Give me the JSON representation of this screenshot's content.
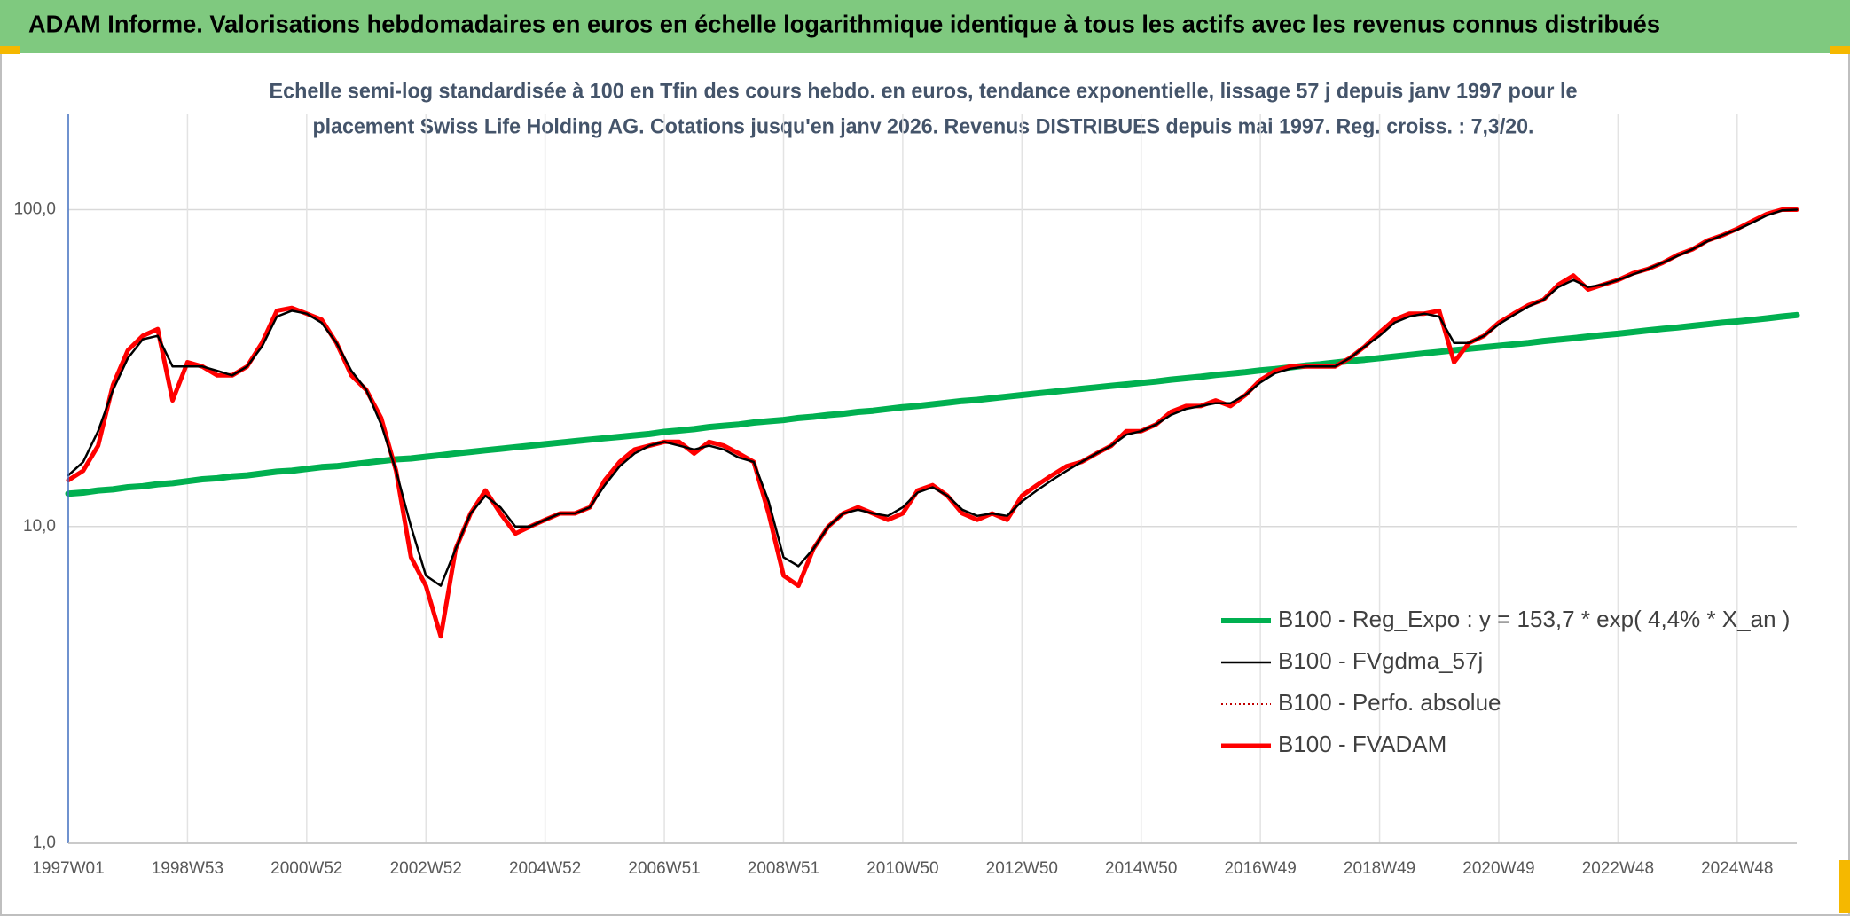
{
  "chart_data": {
    "type": "line",
    "title": "ADAM Informe. Valorisations hebdomadaires en euros en échelle logarithmique identique à tous les actifs avec les revenus connus distribués",
    "subtitle": [
      "Echelle semi-log standardisée à 100 en Tfin des cours hebdo. en euros, tendance exponentielle, lissage 57 j depuis janv 1997 pour le",
      "placement Swiss Life Holding AG. Cotations jusqu'en janv 2026. Revenus DISTRIBUES depuis mai 1997. Reg. croiss. : 7,3/20."
    ],
    "log_scale": true,
    "grid": true,
    "legend": "lower right",
    "ylim": [
      1,
      200
    ],
    "yticks": [
      {
        "value": 1,
        "label": "1,0"
      },
      {
        "value": 10,
        "label": "10,0"
      },
      {
        "value": 100,
        "label": "100,0"
      }
    ],
    "categories": [
      "1997W01",
      null,
      null,
      null,
      null,
      null,
      null,
      null,
      "1998W53",
      null,
      null,
      null,
      null,
      null,
      null,
      null,
      "2000W52",
      null,
      null,
      null,
      null,
      null,
      null,
      null,
      "2002W52",
      null,
      null,
      null,
      null,
      null,
      null,
      null,
      "2004W52",
      null,
      null,
      null,
      null,
      null,
      null,
      null,
      "2006W51",
      null,
      null,
      null,
      null,
      null,
      null,
      null,
      "2008W51",
      null,
      null,
      null,
      null,
      null,
      null,
      null,
      "2010W50",
      null,
      null,
      null,
      null,
      null,
      null,
      null,
      "2012W50",
      null,
      null,
      null,
      null,
      null,
      null,
      null,
      "2014W50",
      null,
      null,
      null,
      null,
      null,
      null,
      null,
      "2016W49",
      null,
      null,
      null,
      null,
      null,
      null,
      null,
      "2018W49",
      null,
      null,
      null,
      null,
      null,
      null,
      null,
      "2020W49",
      null,
      null,
      null,
      null,
      null,
      null,
      null,
      "2022W48",
      null,
      null,
      null,
      null,
      null,
      null,
      null,
      "2024W48",
      null,
      null,
      null,
      null
    ],
    "series": [
      {
        "name": "B100 - Reg_Expo : y = 153,7 * exp( 4,4% *  X_an )",
        "color": "#00b050",
        "style": "solid",
        "width": 7,
        "values": [
          12.7,
          12.8,
          13.0,
          13.1,
          13.3,
          13.4,
          13.6,
          13.7,
          13.9,
          14.1,
          14.2,
          14.4,
          14.5,
          14.7,
          14.9,
          15.0,
          15.2,
          15.4,
          15.5,
          15.7,
          15.9,
          16.1,
          16.3,
          16.4,
          16.6,
          16.8,
          17.0,
          17.2,
          17.4,
          17.6,
          17.8,
          18.0,
          18.2,
          18.4,
          18.6,
          18.8,
          19.0,
          19.2,
          19.4,
          19.6,
          19.9,
          20.1,
          20.3,
          20.6,
          20.8,
          21.0,
          21.3,
          21.5,
          21.7,
          22.0,
          22.2,
          22.5,
          22.7,
          23.0,
          23.2,
          23.5,
          23.8,
          24.0,
          24.3,
          24.6,
          24.9,
          25.1,
          25.4,
          25.7,
          26.0,
          26.3,
          26.6,
          26.9,
          27.2,
          27.5,
          27.8,
          28.1,
          28.4,
          28.7,
          29.1,
          29.4,
          29.7,
          30.1,
          30.4,
          30.7,
          31.1,
          31.4,
          31.8,
          32.2,
          32.5,
          32.9,
          33.3,
          33.6,
          34.0,
          34.4,
          34.8,
          35.2,
          35.6,
          36.0,
          36.4,
          36.8,
          37.2,
          37.6,
          38.0,
          38.5,
          38.9,
          39.3,
          39.8,
          40.2,
          40.6,
          41.1,
          41.6,
          42.1,
          42.5,
          43.0,
          43.5,
          44.0,
          44.4,
          44.9,
          45.4,
          46.0,
          46.5
        ]
      },
      {
        "name": "B100 - FVgdma_57j",
        "color": "#000000",
        "style": "solid",
        "width": 2.5,
        "values": [
          14.5,
          16,
          20,
          27,
          34,
          39,
          40,
          32,
          32,
          32,
          31,
          30,
          32,
          37,
          46,
          48,
          47,
          44,
          38,
          31,
          27,
          21,
          15,
          10,
          7,
          6.5,
          8.5,
          11,
          12.5,
          11.5,
          10,
          10,
          10.5,
          11,
          11,
          11.5,
          13.5,
          15.5,
          17,
          18,
          18.5,
          18,
          17.5,
          18,
          17.5,
          16.5,
          16,
          12,
          8,
          7.5,
          8.5,
          10,
          11,
          11.3,
          11,
          10.8,
          11.5,
          12.8,
          13.3,
          12.5,
          11.3,
          10.8,
          11,
          10.8,
          12,
          13,
          14,
          15,
          16,
          17,
          18,
          19.5,
          20,
          21,
          22.5,
          23.5,
          24,
          24.5,
          24.5,
          26,
          28.5,
          30.5,
          31.5,
          32,
          32,
          32,
          34,
          37,
          40,
          44,
          46,
          47,
          46,
          38,
          38,
          40,
          43.5,
          46.5,
          49.5,
          52,
          57,
          60,
          57,
          58,
          60,
          62.5,
          65,
          68,
          71.5,
          75,
          79.5,
          83,
          86.5,
          91,
          96,
          99.5,
          100
        ]
      },
      {
        "name": "B100 - Perfo. absolue",
        "color": "#c00000",
        "style": "dotted",
        "width": 2,
        "values": [
          14,
          15,
          18,
          28,
          36,
          40,
          42,
          25,
          33,
          32,
          30,
          30,
          32,
          38,
          48,
          49,
          47,
          45,
          38,
          30,
          27,
          22,
          15,
          8,
          6.5,
          4.5,
          8.5,
          11,
          13,
          11,
          9.5,
          10,
          10.5,
          11,
          11,
          11.5,
          14,
          16,
          17.5,
          18,
          18.5,
          18.5,
          17,
          18.5,
          18,
          17,
          16,
          11,
          7,
          6.5,
          8.5,
          10,
          11,
          11.5,
          11,
          10.5,
          11,
          13,
          13.5,
          12.5,
          11,
          10.5,
          11,
          10.5,
          12.5,
          13.5,
          14.5,
          15.5,
          16,
          17,
          18,
          20,
          20,
          21,
          23,
          24,
          24,
          25,
          24,
          26,
          29,
          31,
          32,
          32,
          32,
          32,
          34,
          37,
          41,
          45,
          47,
          47,
          48,
          33,
          38,
          40,
          44,
          47,
          50,
          52,
          58,
          62,
          56,
          58,
          60,
          63,
          65,
          68,
          72,
          75,
          80,
          83,
          87,
          92,
          97,
          100,
          100
        ]
      },
      {
        "name": "B100 - FVADAM",
        "color": "#ff0000",
        "style": "solid",
        "width": 5,
        "values": [
          14,
          15,
          18,
          28,
          36,
          40,
          42,
          25,
          33,
          32,
          30,
          30,
          32,
          38,
          48,
          49,
          47,
          45,
          38,
          30,
          27,
          22,
          15,
          8,
          6.5,
          4.5,
          8.5,
          11,
          13,
          11,
          9.5,
          10,
          10.5,
          11,
          11,
          11.5,
          14,
          16,
          17.5,
          18,
          18.5,
          18.5,
          17,
          18.5,
          18,
          17,
          16,
          11,
          7,
          6.5,
          8.5,
          10,
          11,
          11.5,
          11,
          10.5,
          11,
          13,
          13.5,
          12.5,
          11,
          10.5,
          11,
          10.5,
          12.5,
          13.5,
          14.5,
          15.5,
          16,
          17,
          18,
          20,
          20,
          21,
          23,
          24,
          24,
          25,
          24,
          26,
          29,
          31,
          32,
          32,
          32,
          32,
          34,
          37,
          41,
          45,
          47,
          47,
          48,
          33,
          38,
          40,
          44,
          47,
          50,
          52,
          58,
          62,
          56,
          58,
          60,
          63,
          65,
          68,
          72,
          75,
          80,
          83,
          87,
          92,
          97,
          100,
          100
        ]
      }
    ]
  }
}
